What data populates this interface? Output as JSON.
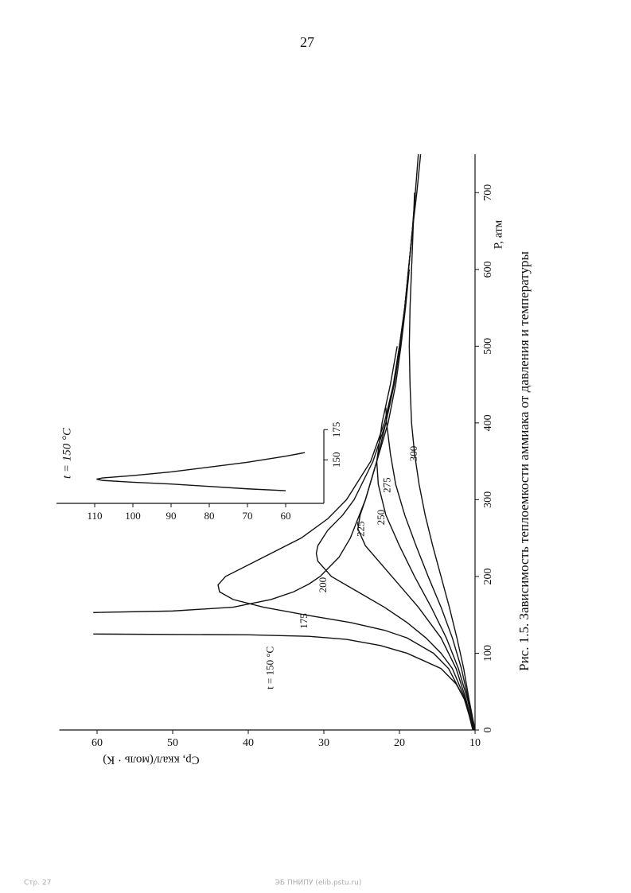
{
  "page_number": "27",
  "footer_left": "Стр. 27",
  "footer_center": "ЭБ ПНИПУ (elib.pstu.ru)",
  "chart_data": [
    {
      "type": "line",
      "title": "Рис. 1.5. Зависимость теплоемкости аммиака от давления и температуры",
      "x_label": "P, атм",
      "y_label": "Cp, ккал/(моль · К)",
      "color": "#111111",
      "xlim": [
        0,
        750
      ],
      "ylim": [
        10,
        65
      ],
      "xticks": [
        0,
        100,
        200,
        300,
        400,
        500,
        600,
        700
      ],
      "yticks": [
        10,
        20,
        30,
        40,
        50,
        60
      ],
      "series": [
        {
          "name": "t = 150 °C",
          "x": [
            0,
            20,
            40,
            60,
            80,
            100,
            110,
            118,
            122,
            124,
            125,
            125,
            153,
            155,
            160,
            170,
            180,
            190,
            200,
            225,
            250,
            275,
            300,
            350,
            400,
            450,
            500,
            550,
            600,
            650,
            700,
            750
          ],
          "values": [
            10.3,
            10.8,
            11.4,
            12.5,
            14.5,
            19,
            22.5,
            27,
            32,
            40,
            60.5,
            null,
            60.5,
            50,
            42,
            37,
            34,
            32,
            30.5,
            28,
            26.5,
            25.5,
            24.5,
            23,
            21.8,
            20.8,
            20,
            19.3,
            18.8,
            18.3,
            17.9,
            17.5
          ]
        },
        {
          "name": "175",
          "x": [
            0,
            40,
            80,
            100,
            120,
            130,
            140,
            150,
            160,
            170,
            180,
            189,
            200,
            220,
            250,
            275,
            300,
            350,
            400,
            450,
            500,
            550,
            600,
            650,
            700,
            750
          ],
          "values": [
            10.2,
            11.4,
            13.5,
            15.5,
            19,
            22,
            26.5,
            32.5,
            38,
            42,
            43.8,
            44,
            43,
            39,
            33,
            29.5,
            27,
            23.8,
            22,
            20.8,
            20,
            19.3,
            18.8,
            18.3,
            17.7,
            17.2
          ]
        },
        {
          "name": "200",
          "x": [
            0,
            40,
            80,
            100,
            120,
            140,
            160,
            180,
            200,
            220,
            230,
            240,
            260,
            280,
            300,
            350,
            400,
            450,
            500,
            550,
            600,
            650,
            700
          ],
          "values": [
            10.2,
            11.3,
            13,
            14.5,
            16.5,
            19,
            22,
            25.5,
            29,
            30.8,
            31,
            30.8,
            29.5,
            27.5,
            26,
            23.5,
            21.8,
            20.7,
            19.9,
            19.3,
            18.8,
            18.3,
            17.9
          ]
        },
        {
          "name": "225",
          "x": [
            0,
            40,
            80,
            120,
            160,
            200,
            240,
            262,
            280,
            300,
            350,
            400,
            450,
            500,
            550,
            600
          ],
          "values": [
            10.2,
            11.2,
            12.5,
            14.5,
            17.5,
            21,
            24.5,
            25.5,
            25.2,
            24.5,
            23,
            21.5,
            20.5,
            19.8,
            19.2,
            18.7
          ]
        },
        {
          "name": "250",
          "x": [
            0,
            40,
            80,
            120,
            160,
            200,
            240,
            280,
            320,
            350,
            400,
            450,
            500
          ],
          "values": [
            10.1,
            11,
            12.2,
            13.8,
            15.8,
            18,
            20,
            21.8,
            22.8,
            23,
            22.3,
            21.2,
            20.3
          ]
        },
        {
          "name": "275",
          "x": [
            0,
            40,
            80,
            120,
            160,
            200,
            240,
            280,
            320,
            360,
            400,
            420
          ],
          "values": [
            10.1,
            10.9,
            11.8,
            13,
            14.5,
            16.2,
            17.8,
            19.3,
            20.5,
            21.2,
            21.7,
            21.8
          ]
        },
        {
          "name": "300",
          "x": [
            0,
            40,
            80,
            120,
            160,
            200,
            240,
            280,
            320,
            360,
            400,
            450,
            500,
            550,
            600,
            650,
            700
          ],
          "values": [
            10,
            10.8,
            11.5,
            12.4,
            13.4,
            14.5,
            15.6,
            16.6,
            17.4,
            18,
            18.4,
            18.6,
            18.7,
            18.6,
            18.4,
            18.2,
            18
          ]
        }
      ]
    },
    {
      "type": "line",
      "title": "t = 150 °C",
      "color": "#111111",
      "xlim": [
        114,
        175
      ],
      "ylim": [
        50,
        120
      ],
      "xticks": [
        150,
        175
      ],
      "yticks": [
        60,
        70,
        80,
        90,
        100,
        110
      ],
      "series": [
        {
          "x": [
            124.5,
            126,
            128,
            130,
            131.5,
            133,
            134,
            135,
            137,
            140,
            144,
            148,
            153,
            156
          ],
          "values": [
            60,
            70,
            80,
            90,
            100,
            108,
            109.5,
            108,
            100,
            90,
            80,
            70,
            60,
            55
          ]
        }
      ]
    }
  ]
}
